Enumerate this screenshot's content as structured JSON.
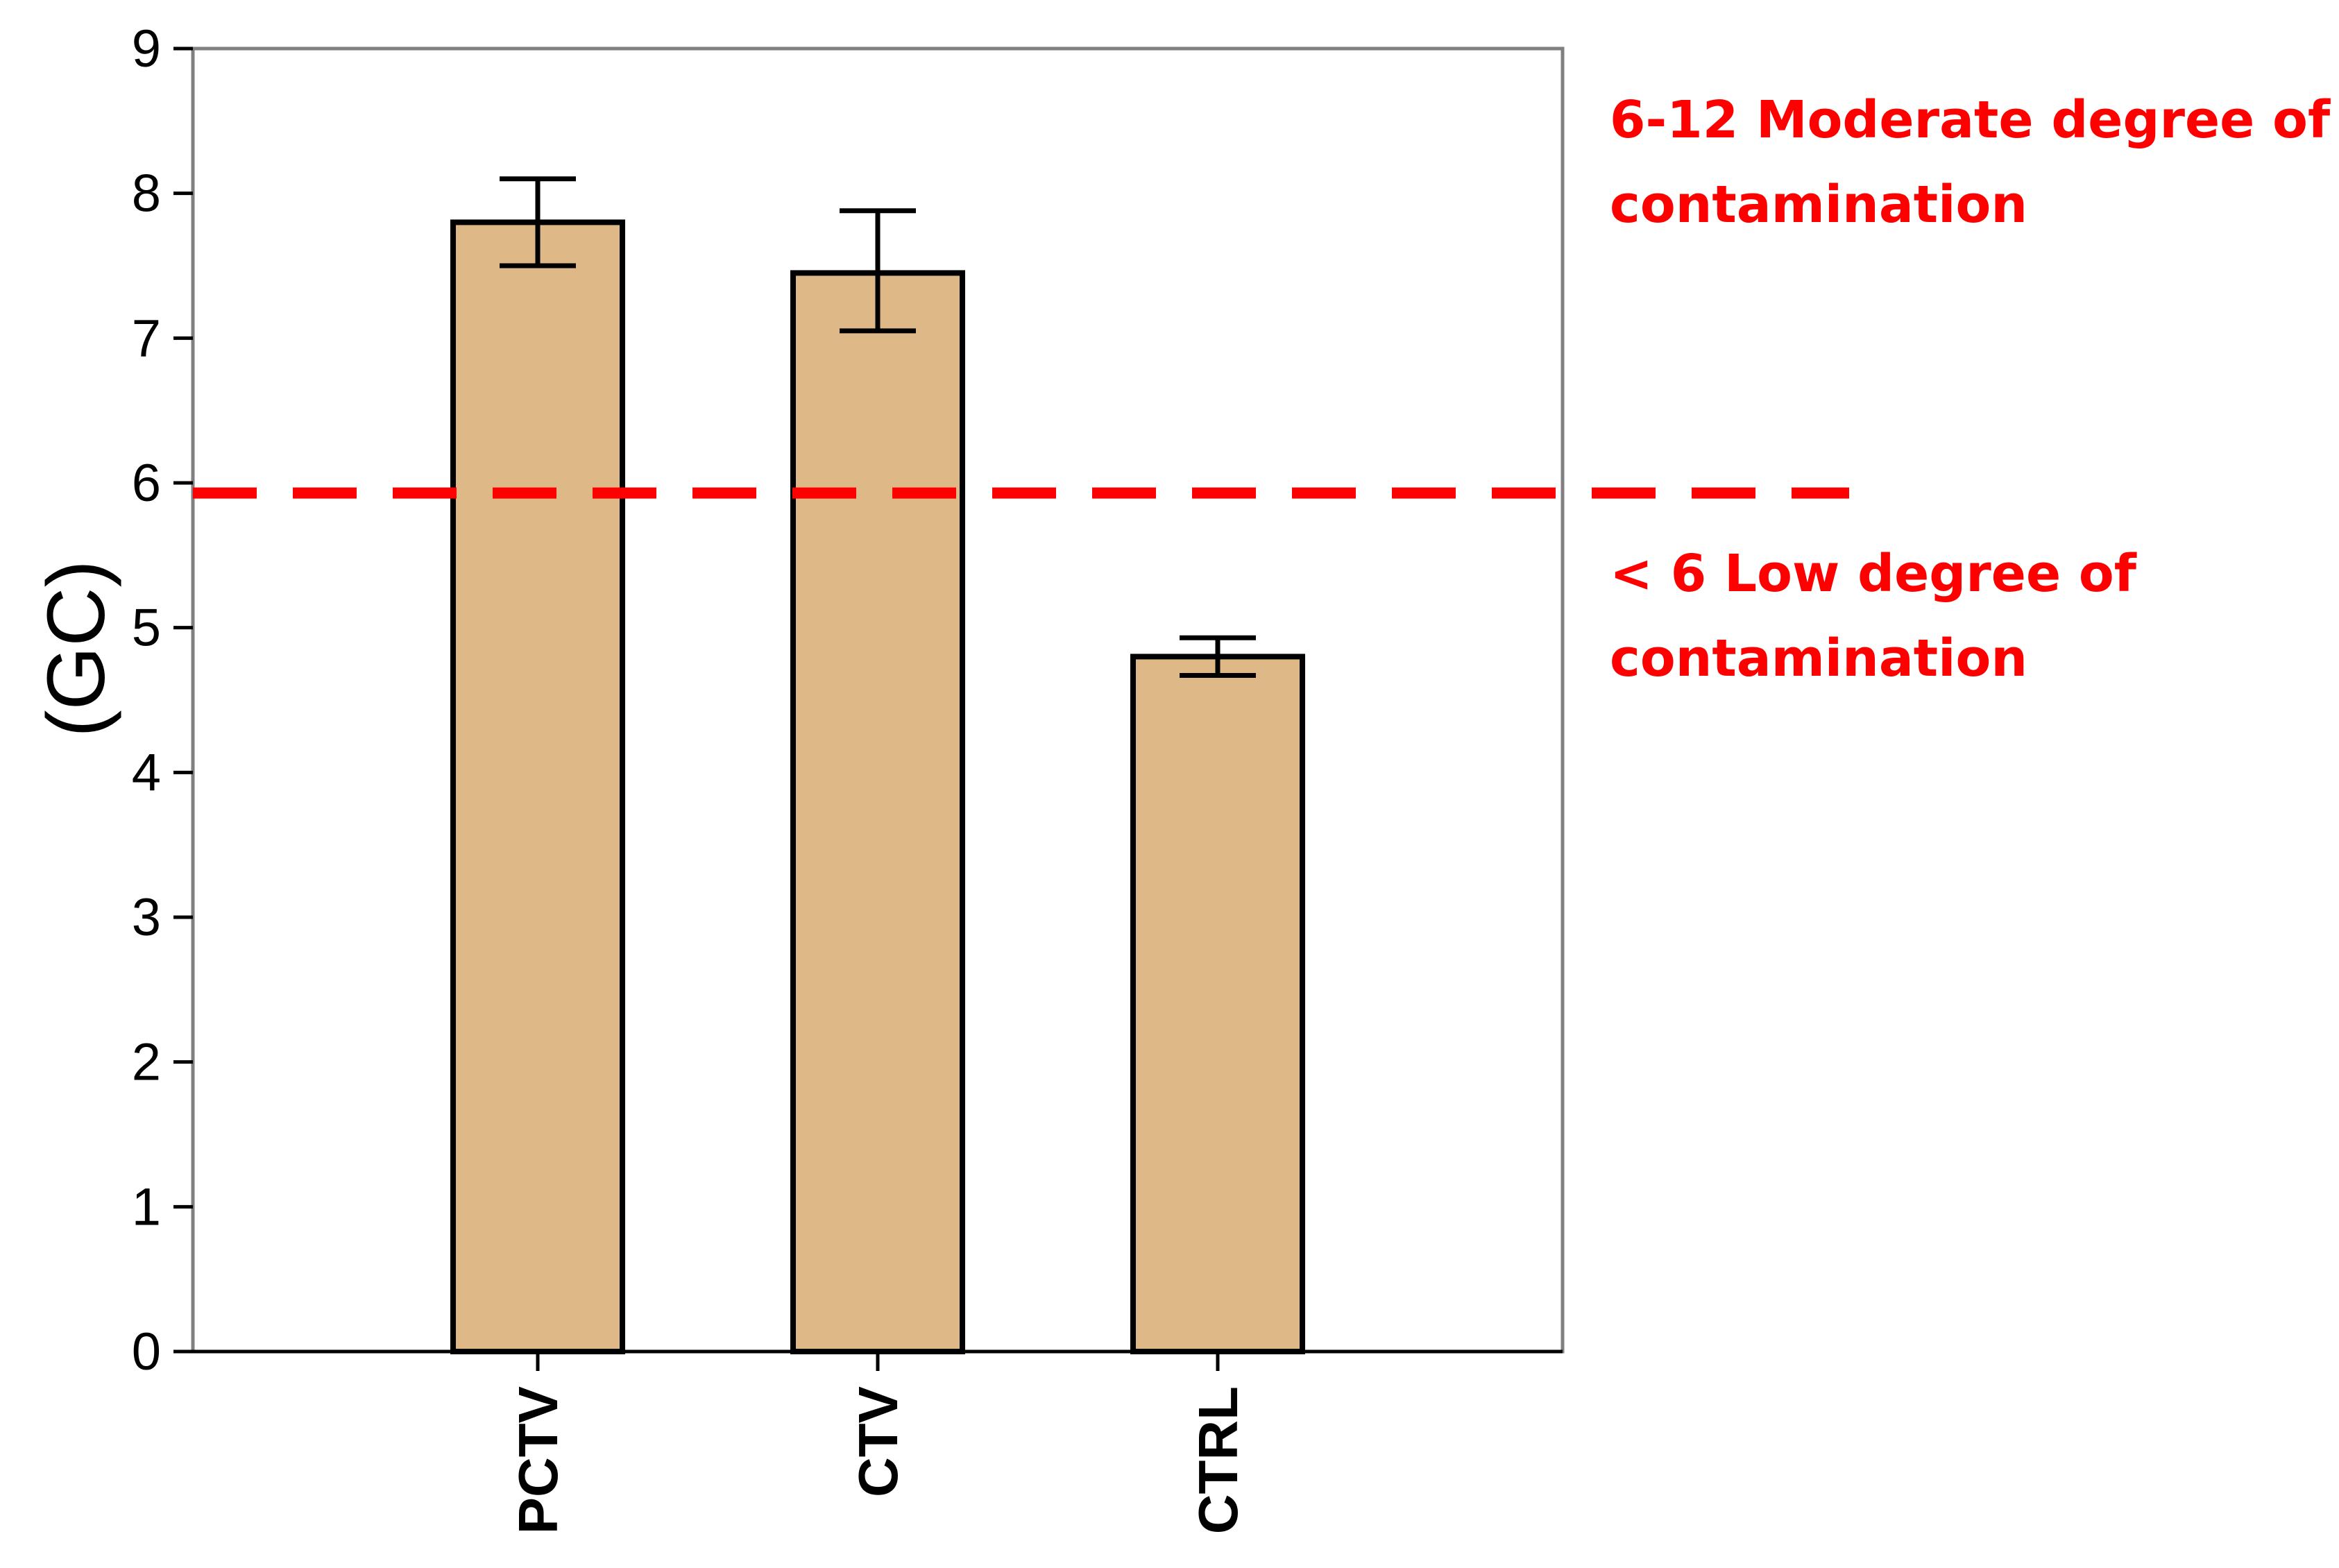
{
  "chart_data": {
    "type": "bar",
    "categories": [
      "PCTV",
      "CTV",
      "CTRL"
    ],
    "values": [
      7.8,
      7.45,
      4.8
    ],
    "errors": [
      {
        "low": 7.5,
        "high": 8.1
      },
      {
        "low": 7.05,
        "high": 7.88
      },
      {
        "low": 4.67,
        "high": 4.93
      }
    ],
    "ylabel": "(GC)",
    "xlabel": "",
    "ylim": [
      0,
      9
    ],
    "yticks": [
      "0",
      "1",
      "2",
      "3",
      "4",
      "5",
      "6",
      "7",
      "8",
      "9"
    ],
    "grid": false,
    "threshold": {
      "value": 5.93,
      "style": "dashed"
    },
    "annotations": {
      "upper": [
        "6-12 Moderate degree of",
        "contamination"
      ],
      "lower": [
        "< 6 Low degree of",
        "contamination"
      ]
    },
    "colors": {
      "bar_fill": "#deb887",
      "bar_stroke": "#000000",
      "threshold": "#ff0000",
      "annotation": "#ff0000",
      "frame": "#808080"
    }
  }
}
